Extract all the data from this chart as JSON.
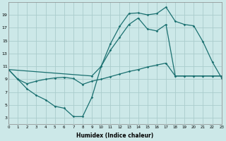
{
  "xlabel": "Humidex (Indice chaleur)",
  "bg_color": "#cce8e8",
  "grid_color": "#aacccc",
  "line_color": "#1a7070",
  "ylim": [
    2,
    21
  ],
  "xlim": [
    0,
    23
  ],
  "yticks": [
    3,
    5,
    7,
    9,
    11,
    13,
    15,
    17,
    19
  ],
  "xticks": [
    0,
    1,
    2,
    3,
    4,
    5,
    6,
    7,
    8,
    9,
    10,
    11,
    12,
    13,
    14,
    15,
    16,
    17,
    18,
    19,
    20,
    21,
    22,
    23
  ],
  "line1_x": [
    0,
    1,
    2,
    3,
    4,
    5,
    6,
    7,
    8,
    9,
    10,
    11,
    12,
    13,
    14,
    15,
    16,
    17,
    18,
    19,
    20,
    21,
    22,
    23
  ],
  "line1_y": [
    10.5,
    9.0,
    7.5,
    6.5,
    5.8,
    4.8,
    4.5,
    3.2,
    3.2,
    6.2,
    11.0,
    14.5,
    17.2,
    19.2,
    19.3,
    19.0,
    19.2,
    20.2,
    18.0,
    17.5,
    17.3,
    14.8,
    11.7,
    9.2
  ],
  "line2_x": [
    0,
    9,
    10,
    11,
    12,
    13,
    14,
    15,
    16,
    17,
    18,
    19,
    20,
    21,
    22,
    23
  ],
  "line2_y": [
    10.5,
    9.5,
    11.0,
    13.5,
    15.5,
    17.5,
    18.5,
    16.8,
    16.5,
    17.5,
    9.5,
    9.5,
    9.5,
    9.5,
    9.5,
    9.5
  ],
  "line3_x": [
    0,
    1,
    2,
    3,
    4,
    5,
    6,
    7,
    8,
    9,
    10,
    11,
    12,
    13,
    14,
    15,
    16,
    17,
    18,
    19,
    20,
    21,
    22,
    23
  ],
  "line3_y": [
    10.5,
    9.0,
    8.3,
    8.7,
    9.0,
    9.2,
    9.3,
    9.1,
    8.2,
    8.7,
    9.0,
    9.4,
    9.8,
    10.2,
    10.5,
    10.9,
    11.2,
    11.5,
    9.5,
    9.5,
    9.5,
    9.5,
    9.5,
    9.5
  ]
}
